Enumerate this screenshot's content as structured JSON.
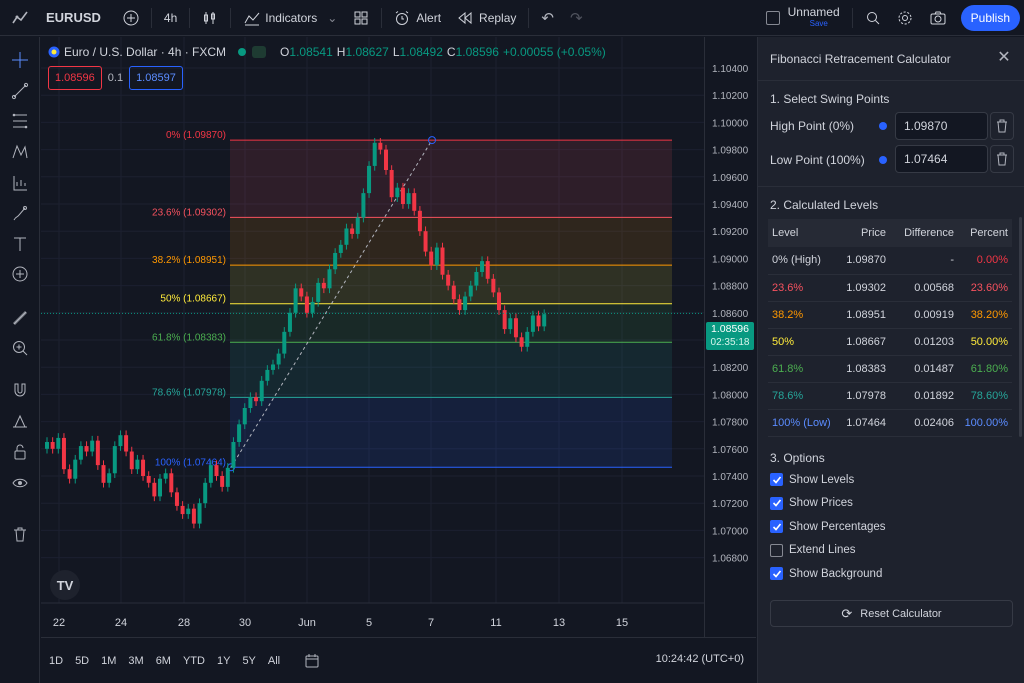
{
  "header": {
    "symbol": "EURUSD",
    "interval": "4h",
    "indicators_label": "Indicators",
    "alert_label": "Alert",
    "replay_label": "Replay",
    "layout_name": "Unnamed",
    "save_label": "Save",
    "publish_label": "Publish"
  },
  "legend": {
    "instrument": "Euro / U.S. Dollar · 4h · FXCM",
    "o_key": "O",
    "o_val": "1.08541",
    "h_key": "H",
    "h_val": "1.08627",
    "l_key": "L",
    "l_val": "1.08492",
    "c_key": "C",
    "c_val": "1.08596",
    "change": "+0.00055 (+0.05%)"
  },
  "quick_inputs": {
    "sell": "1.08596",
    "spread": "0.1",
    "buy": "1.08597"
  },
  "last_price": {
    "value": "1.08596",
    "countdown": "02:35:18"
  },
  "price_axis": [
    "1.10400",
    "1.10200",
    "1.10000",
    "1.09800",
    "1.09600",
    "1.09400",
    "1.09200",
    "1.09000",
    "1.08800",
    "1.08600",
    "1.08400",
    "1.08200",
    "1.08000",
    "1.07800",
    "1.07600",
    "1.07400",
    "1.07200",
    "1.07000",
    "1.06800"
  ],
  "time_axis": [
    "22",
    "24",
    "28",
    "30",
    "Jun",
    "5",
    "7",
    "11",
    "13",
    "15"
  ],
  "fib_lines": [
    {
      "label": "0% (1.09870)",
      "price": 1.0987,
      "color": "#f23645"
    },
    {
      "label": "23.6% (1.09302)",
      "price": 1.09302,
      "color": "#f7525f"
    },
    {
      "label": "38.2% (1.08951)",
      "price": 1.08951,
      "color": "#ff9800"
    },
    {
      "label": "50% (1.08667)",
      "price": 1.08667,
      "color": "#ffeb3b"
    },
    {
      "label": "61.8% (1.08383)",
      "price": 1.08383,
      "color": "#4caf50"
    },
    {
      "label": "78.6% (1.07978)",
      "price": 1.07978,
      "color": "#26a69a"
    },
    {
      "label": "100% (1.07464)",
      "price": 1.07464,
      "color": "#2962ff"
    }
  ],
  "bottom": {
    "ranges": [
      "1D",
      "5D",
      "1M",
      "3M",
      "6M",
      "YTD",
      "1Y",
      "5Y",
      "All"
    ],
    "clock": "10:24:42 (UTC+0)",
    "tv_logo": "TV"
  },
  "panel": {
    "title": "Fibonacci Retracement Calculator",
    "section1": "1. Select Swing Points",
    "high_label": "High Point (0%)",
    "high_value": "1.09870",
    "low_label": "Low Point (100%)",
    "low_value": "1.07464",
    "section2": "2. Calculated Levels",
    "columns": [
      "Level",
      "Price",
      "Difference",
      "Percent"
    ],
    "rows": [
      {
        "level": "0% (High)",
        "price": "1.09870",
        "diff": "-",
        "pct": "0.00%",
        "color": "#f23645",
        "label_color": "#d1d4dc"
      },
      {
        "level": "23.6%",
        "price": "1.09302",
        "diff": "0.00568",
        "pct": "23.60%",
        "color": "#f7525f",
        "label_color": "#f7525f"
      },
      {
        "level": "38.2%",
        "price": "1.08951",
        "diff": "0.00919",
        "pct": "38.20%",
        "color": "#ff9800",
        "label_color": "#ff9800"
      },
      {
        "level": "50%",
        "price": "1.08667",
        "diff": "0.01203",
        "pct": "50.00%",
        "color": "#ffeb3b",
        "label_color": "#ffeb3b"
      },
      {
        "level": "61.8%",
        "price": "1.08383",
        "diff": "0.01487",
        "pct": "61.80%",
        "color": "#4caf50",
        "label_color": "#4caf50"
      },
      {
        "level": "78.6%",
        "price": "1.07978",
        "diff": "0.01892",
        "pct": "78.60%",
        "color": "#26a69a",
        "label_color": "#26a69a"
      },
      {
        "level": "100% (Low)",
        "price": "1.07464",
        "diff": "0.02406",
        "pct": "100.00%",
        "color": "#5b8cff",
        "label_color": "#5b8cff"
      }
    ],
    "section3": "3. Options",
    "options": [
      {
        "label": "Show Levels",
        "checked": true
      },
      {
        "label": "Show Prices",
        "checked": true
      },
      {
        "label": "Show Percentages",
        "checked": true
      },
      {
        "label": "Extend Lines",
        "checked": false
      },
      {
        "label": "Show Background",
        "checked": true
      }
    ],
    "reset_label": "Reset Calculator"
  },
  "colors": {
    "up": "#089981",
    "down": "#f23645",
    "accent": "#2962ff"
  }
}
